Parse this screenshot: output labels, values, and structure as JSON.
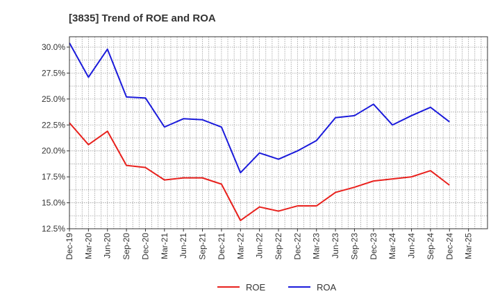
{
  "chart_data": {
    "type": "line",
    "title": "[3835]  Trend of ROE and ROA",
    "xlabel": "",
    "ylabel": "",
    "categories": [
      "Dec-19",
      "Mar-20",
      "Jun-20",
      "Sep-20",
      "Dec-20",
      "Mar-21",
      "Jun-21",
      "Sep-21",
      "Dec-21",
      "Mar-22",
      "Jun-22",
      "Sep-22",
      "Dec-22",
      "Mar-23",
      "Jun-23",
      "Sep-23",
      "Dec-23",
      "Mar-24",
      "Jun-24",
      "Sep-24",
      "Dec-24",
      "Mar-25"
    ],
    "y_ticks": [
      "12.5%",
      "15.0%",
      "17.5%",
      "20.0%",
      "22.5%",
      "25.0%",
      "27.5%",
      "30.0%"
    ],
    "ylim": [
      12.5,
      31.0
    ],
    "grid": true,
    "legend_position": "bottom-center",
    "series": [
      {
        "name": "ROE",
        "color": "#e8201c",
        "values": [
          22.7,
          20.6,
          21.9,
          18.6,
          18.4,
          17.2,
          17.4,
          17.4,
          16.8,
          13.3,
          14.6,
          14.2,
          14.7,
          14.7,
          16.0,
          16.5,
          17.1,
          17.3,
          17.5,
          18.1,
          16.7,
          null
        ]
      },
      {
        "name": "ROA",
        "color": "#1a1adb",
        "values": [
          30.4,
          27.1,
          29.8,
          25.2,
          25.1,
          22.3,
          23.1,
          23.0,
          22.3,
          17.9,
          19.8,
          19.2,
          20.0,
          21.0,
          23.2,
          23.4,
          24.5,
          22.5,
          23.4,
          24.2,
          22.8,
          null
        ]
      }
    ]
  }
}
